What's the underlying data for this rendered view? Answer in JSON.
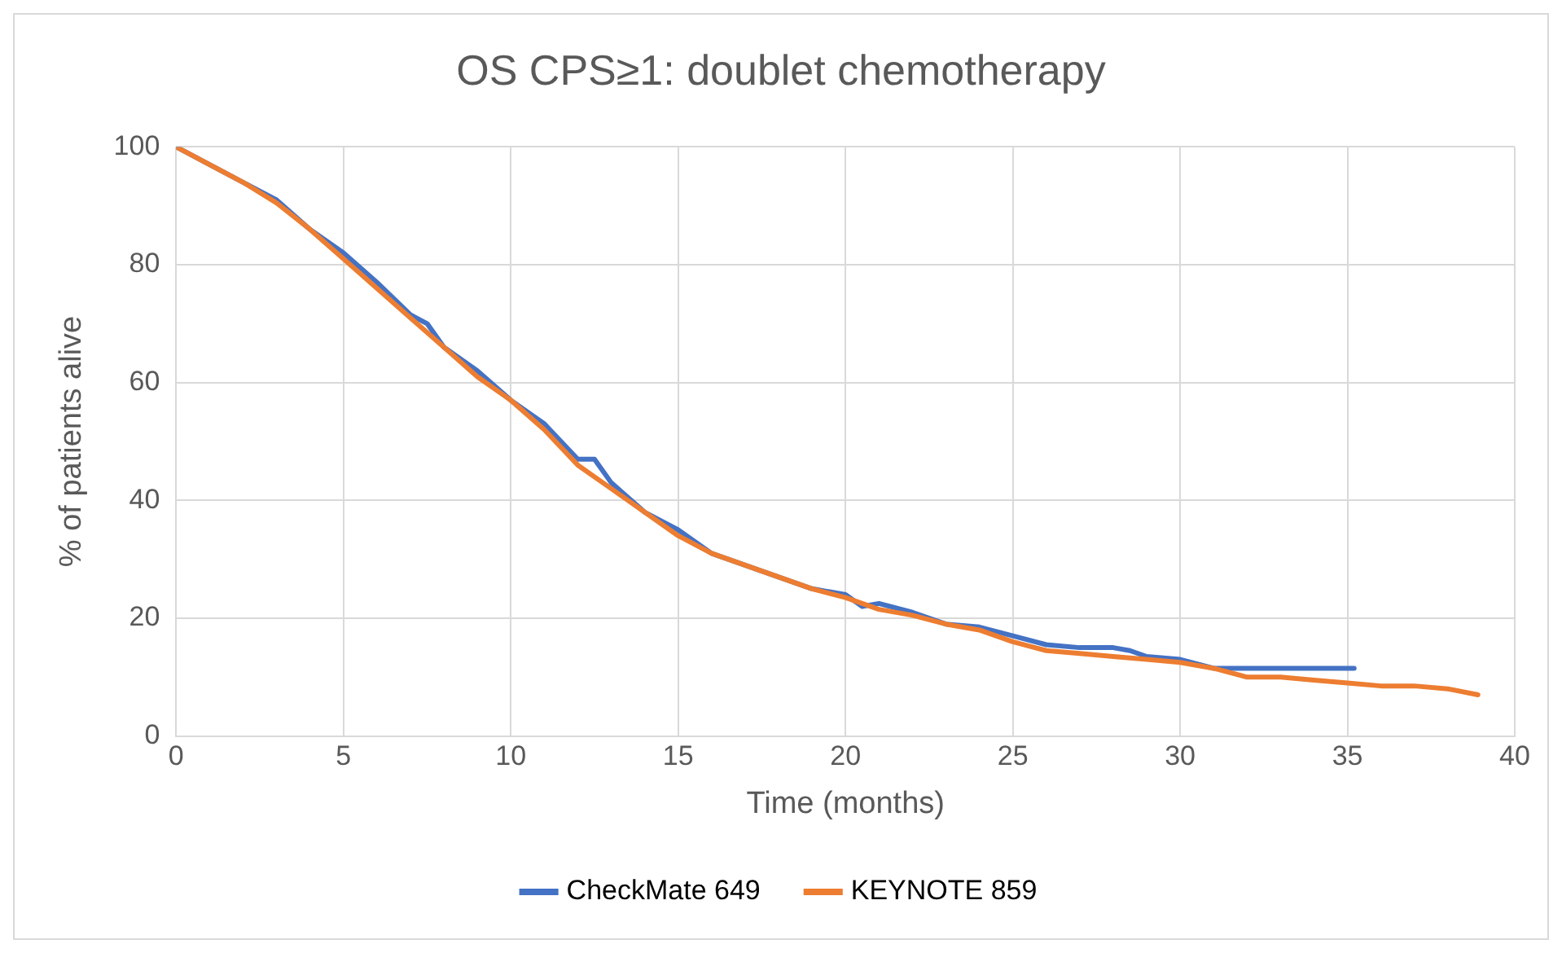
{
  "chart_data": {
    "type": "line",
    "title": "OS CPS≥1: doublet chemotherapy",
    "xlabel": "Time (months)",
    "ylabel": "% of patients alive",
    "xlim": [
      0,
      40
    ],
    "xticks": [
      0,
      5,
      10,
      15,
      20,
      25,
      30,
      35,
      40
    ],
    "ylim": [
      0,
      100
    ],
    "yticks": [
      0,
      20,
      40,
      60,
      80,
      100
    ],
    "grid": true,
    "legend": "bottom",
    "marker": "none",
    "line_style": "solid",
    "series": [
      {
        "name": "CheckMate 649",
        "color": "#4472c4",
        "x": [
          0,
          1,
          2,
          3,
          4,
          5,
          6,
          7,
          7.5,
          8,
          9,
          10,
          11,
          12,
          12.5,
          13,
          14,
          15,
          16,
          17,
          18,
          19,
          20,
          20.5,
          21,
          22,
          23,
          24,
          25,
          26,
          27,
          28,
          28.5,
          29,
          30,
          31,
          32,
          33,
          34,
          35.2
        ],
        "values": [
          100,
          97,
          94,
          91,
          86,
          82,
          77,
          71.5,
          70,
          66,
          62,
          57,
          53,
          47,
          47,
          43,
          38,
          35,
          31,
          29,
          27,
          25,
          24,
          22,
          22.5,
          21,
          19,
          18.5,
          17,
          15.5,
          15,
          15,
          14.5,
          13.5,
          13,
          11.5,
          11.5,
          11.5,
          11.5,
          11.5
        ]
      },
      {
        "name": "KEYNOTE 859",
        "color": "#ed7d31",
        "x": [
          0,
          1,
          2,
          3,
          4,
          5,
          6,
          7,
          8,
          9,
          10,
          11,
          12,
          13,
          14,
          15,
          16,
          17,
          18,
          19,
          20,
          21,
          22,
          23,
          24,
          25,
          26,
          27,
          28,
          29,
          30,
          31,
          32,
          33,
          34,
          35,
          36,
          37,
          38,
          38.9
        ],
        "values": [
          100,
          97,
          94,
          90.5,
          86,
          81,
          76,
          71,
          66,
          61,
          57,
          52,
          46,
          42,
          38,
          34,
          31,
          29,
          27,
          25,
          23.5,
          21.5,
          20.5,
          19,
          18,
          16,
          14.5,
          14,
          13.5,
          13,
          12.5,
          11.5,
          10,
          10,
          9.5,
          9,
          8.5,
          8.5,
          8,
          7
        ]
      }
    ]
  }
}
